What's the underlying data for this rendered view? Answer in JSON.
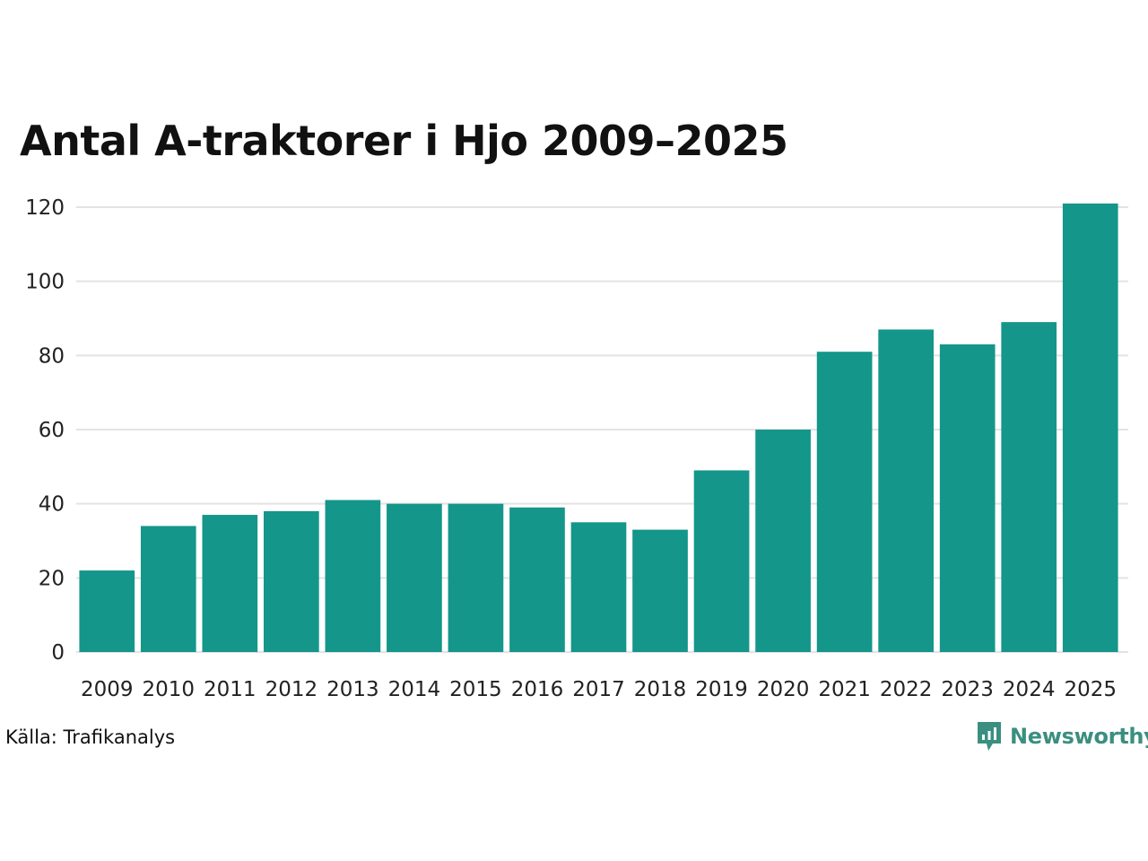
{
  "chart_data": {
    "type": "bar",
    "title": "Antal A-traktorer i Hjo 2009–2025",
    "categories": [
      "2009",
      "2010",
      "2011",
      "2012",
      "2013",
      "2014",
      "2015",
      "2016",
      "2017",
      "2018",
      "2019",
      "2020",
      "2021",
      "2022",
      "2023",
      "2024",
      "2025"
    ],
    "values": [
      22,
      34,
      37,
      38,
      41,
      40,
      40,
      39,
      35,
      33,
      49,
      60,
      81,
      87,
      83,
      89,
      121
    ],
    "xlabel": "",
    "ylabel": "",
    "ylim": [
      0,
      120
    ],
    "yticks": [
      0,
      20,
      40,
      60,
      80,
      100,
      120
    ],
    "grid": true,
    "legend": "none",
    "bar_color": "#14968a",
    "grid_color": "#e3e3e3"
  },
  "footer": {
    "source": "Källa: Trafikanalys",
    "brand": "Newsworthy",
    "brand_icon": "newsworthy-logo-icon",
    "brand_color": "#3a8f80"
  }
}
